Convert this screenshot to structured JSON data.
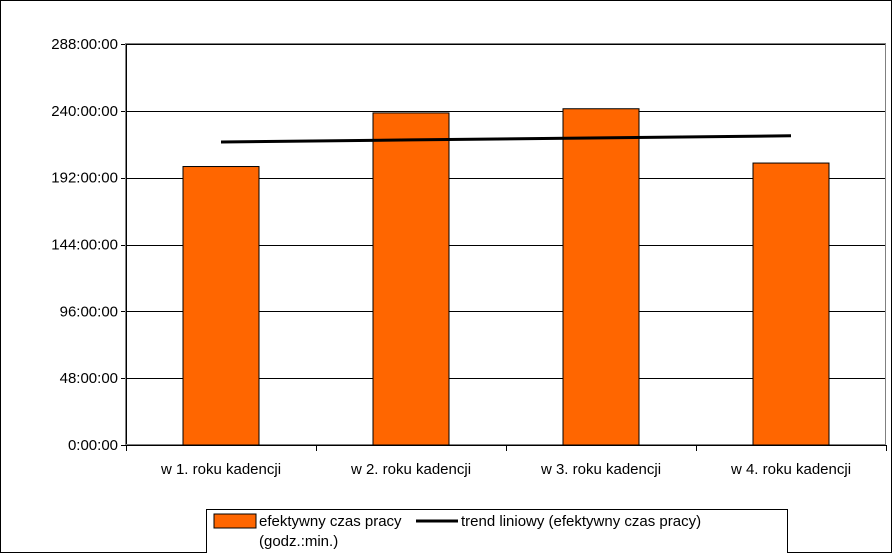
{
  "chart_data": {
    "type": "bar",
    "title": "",
    "xlabel": "",
    "ylabel": "",
    "categories": [
      "w 1. roku kadencji",
      "w 2. roku kadencji",
      "w 3. roku kadencji",
      "w 4. roku kadencji"
    ],
    "series": [
      {
        "name": "efektywny czas pracy (godz.:min.)",
        "kind": "bar",
        "color": "#ff6600",
        "values": [
          200.0,
          238.5,
          241.5,
          202.5
        ]
      },
      {
        "name": "trend liniowy (efektywny czas pracy)",
        "kind": "line",
        "color": "#000000",
        "values": [
          217.6,
          219.1,
          220.6,
          222.1
        ]
      }
    ],
    "ylim": [
      0,
      288
    ],
    "yticks": [
      0,
      48,
      96,
      144,
      192,
      240,
      288
    ],
    "ytick_labels": [
      "0:00:00",
      "48:00:00",
      "96:00:00",
      "144:00:00",
      "192:00:00",
      "240:00:00",
      "288:00:00"
    ],
    "grid": true,
    "legend_position": "bottom"
  },
  "legend": {
    "bar_label_line1": "efektywny czas pracy",
    "bar_label_line2": "(godz.:min.)",
    "trend_label": "trend liniowy (efektywny czas pracy)"
  }
}
